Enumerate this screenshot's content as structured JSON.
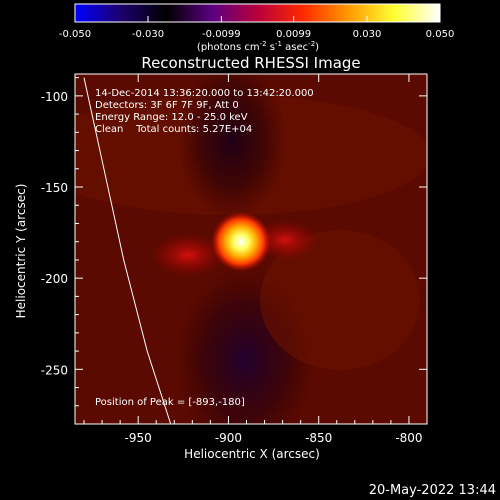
{
  "colorbar": {
    "ticks": [
      -0.05,
      -0.03,
      -0.0099,
      0.0099,
      0.03,
      0.05
    ],
    "tick_labels": [
      "-0.050",
      "-0.030",
      "-0.0099",
      "0.0099",
      "0.030",
      "0.050"
    ],
    "units_prefix": "(photons cm",
    "units_exp1": "-2",
    "units_mid1": " s",
    "units_exp2": "-1",
    "units_mid2": " asec",
    "units_exp3": "-2",
    "units_suffix": ")",
    "colors": [
      "#0000ff",
      "#1c006e",
      "#000000",
      "#5b0080",
      "#b8003c",
      "#ff2a00",
      "#ff9a00",
      "#ffff33",
      "#ffffff"
    ]
  },
  "annotations": {
    "time_range": "14-Dec-2014 13:36:20.000 to 13:42:20.000",
    "detectors": "Detectors: 3F 6F 7F 9F, Att 0",
    "energy": "Energy Range: 12.0 - 25.0 keV",
    "clean": "Clean    Total counts: 5.27E+04",
    "peak": "Position of Peak = [-893,-180]"
  },
  "chart_data": {
    "type": "heatmap",
    "title": "Reconstructed RHESSI Image",
    "xlabel": "Heliocentric X (arcsec)",
    "ylabel": "Heliocentric Y (arcsec)",
    "xlim": [
      -985,
      -790
    ],
    "ylim": [
      -280,
      -88
    ],
    "xticks": [
      -950,
      -900,
      -850,
      -800
    ],
    "yticks": [
      -100,
      -150,
      -200,
      -250
    ],
    "xtick_labels": [
      "-950",
      "-900",
      "-850",
      "-800"
    ],
    "ytick_labels": [
      "-100",
      "-150",
      "-200",
      "-250"
    ],
    "peak_x": -893,
    "peak_y": -180,
    "limb_points": [
      [
        -980,
        -90
      ],
      [
        -969,
        -140
      ],
      [
        -958,
        -190
      ],
      [
        -945,
        -240
      ],
      [
        -932,
        -280
      ]
    ]
  },
  "footer": {
    "date": "20-May-2022 13:44"
  }
}
